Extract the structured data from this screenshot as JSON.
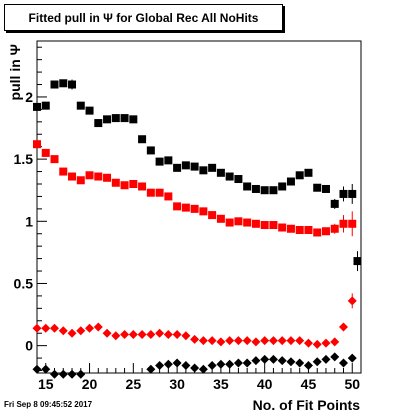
{
  "chart_data": {
    "type": "scatter",
    "title": "Fitted pull in Ψ for Global Rec All NoHits",
    "xlabel": "No. of Fit Points",
    "ylabel": "pull in Ψ",
    "xlim": [
      14,
      51
    ],
    "ylim": [
      -0.22,
      2.45
    ],
    "grid": false,
    "xticks": [
      15,
      20,
      25,
      30,
      35,
      40,
      45,
      50
    ],
    "yticks": [
      0,
      0.5,
      1,
      1.5,
      2
    ],
    "ytick_labels": [
      "0",
      "0.5",
      "1",
      "1.5",
      "2"
    ],
    "series": [
      {
        "color": "#000000",
        "marker": "square",
        "x": [
          14,
          15,
          16,
          17,
          18,
          19,
          20,
          21,
          22,
          23,
          24,
          25,
          26,
          27,
          28,
          29,
          30,
          31,
          32,
          33,
          34,
          35,
          36,
          37,
          38,
          39,
          40,
          41,
          42,
          43,
          44,
          45,
          46,
          47,
          48,
          49,
          50
        ],
        "y": [
          1.92,
          1.93,
          2.1,
          2.11,
          2.1,
          1.93,
          1.89,
          1.79,
          1.82,
          1.83,
          1.83,
          1.82,
          1.66,
          1.57,
          1.48,
          1.49,
          1.43,
          1.45,
          1.44,
          1.41,
          1.43,
          1.39,
          1.36,
          1.34,
          1.28,
          1.26,
          1.25,
          1.25,
          1.28,
          1.32,
          1.37,
          1.39,
          1.27,
          1.26,
          1.14,
          1.22,
          1.22
        ],
        "yerr": [
          0.05,
          0.03,
          0.03,
          0.03,
          0.04,
          0.03,
          0.03,
          0.03,
          0.03,
          0.02,
          0.02,
          0.02,
          0.02,
          0.02,
          0.02,
          0.02,
          0.02,
          0.02,
          0.02,
          0.02,
          0.02,
          0.02,
          0.02,
          0.02,
          0.02,
          0.02,
          0.02,
          0.02,
          0.02,
          0.02,
          0.02,
          0.03,
          0.03,
          0.03,
          0.04,
          0.06,
          0.08
        ]
      },
      {
        "color": "#000000",
        "marker": "square",
        "x": [
          50.6
        ],
        "y": [
          0.68
        ],
        "yerr": [
          0.08
        ]
      },
      {
        "color": "#ff0000",
        "marker": "square",
        "x": [
          14,
          15,
          16,
          17,
          18,
          19,
          20,
          21,
          22,
          23,
          24,
          25,
          26,
          27,
          28,
          29,
          30,
          31,
          32,
          33,
          34,
          35,
          36,
          37,
          38,
          39,
          40,
          41,
          42,
          43,
          44,
          45,
          46,
          47,
          48,
          49,
          50
        ],
        "y": [
          1.62,
          1.55,
          1.5,
          1.4,
          1.36,
          1.33,
          1.37,
          1.36,
          1.35,
          1.31,
          1.29,
          1.3,
          1.28,
          1.23,
          1.23,
          1.2,
          1.12,
          1.11,
          1.1,
          1.08,
          1.05,
          1.02,
          0.99,
          1.0,
          0.99,
          0.98,
          0.97,
          0.97,
          0.95,
          0.94,
          0.93,
          0.93,
          0.91,
          0.92,
          0.94,
          0.98,
          0.98
        ],
        "yerr": [
          0.03,
          0.02,
          0.02,
          0.02,
          0.02,
          0.02,
          0.02,
          0.02,
          0.02,
          0.02,
          0.02,
          0.02,
          0.02,
          0.02,
          0.02,
          0.02,
          0.02,
          0.02,
          0.02,
          0.02,
          0.02,
          0.02,
          0.02,
          0.02,
          0.02,
          0.02,
          0.02,
          0.02,
          0.02,
          0.02,
          0.02,
          0.02,
          0.02,
          0.03,
          0.04,
          0.07,
          0.1
        ]
      },
      {
        "color": "#ff0000",
        "marker": "diamond",
        "x": [
          14,
          15,
          16,
          17,
          18,
          19,
          20,
          21,
          22,
          23,
          24,
          25,
          26,
          27,
          28,
          29,
          30,
          31,
          32,
          33,
          34,
          35,
          36,
          37,
          38,
          39,
          40,
          41,
          42,
          43,
          44,
          45,
          46,
          47,
          48,
          49,
          50
        ],
        "y": [
          0.14,
          0.14,
          0.14,
          0.12,
          0.1,
          0.12,
          0.14,
          0.15,
          0.1,
          0.08,
          0.09,
          0.09,
          0.09,
          0.09,
          0.1,
          0.09,
          0.09,
          0.08,
          0.05,
          0.04,
          0.04,
          0.03,
          0.04,
          0.04,
          0.04,
          0.03,
          0.04,
          0.04,
          0.04,
          0.04,
          0.04,
          0.02,
          0.01,
          0.02,
          0.03,
          0.15,
          0.36
        ],
        "yerr": [
          0.01,
          0.01,
          0.01,
          0.01,
          0.01,
          0.01,
          0.01,
          0.01,
          0.01,
          0.01,
          0.01,
          0.01,
          0.01,
          0.01,
          0.01,
          0.01,
          0.01,
          0.01,
          0.01,
          0.01,
          0.01,
          0.01,
          0.01,
          0.01,
          0.01,
          0.01,
          0.01,
          0.01,
          0.01,
          0.01,
          0.01,
          0.01,
          0.01,
          0.02,
          0.02,
          0.03,
          0.06
        ]
      },
      {
        "color": "#000000",
        "marker": "diamond",
        "x": [
          14,
          15,
          16,
          17,
          18,
          19,
          27,
          28,
          29,
          30,
          31,
          32,
          33,
          34,
          35,
          36,
          37,
          38,
          39,
          40,
          41,
          42,
          43,
          44,
          45,
          46,
          47,
          48,
          49,
          50
        ],
        "y": [
          -0.19,
          -0.19,
          -0.23,
          -0.23,
          -0.23,
          -0.23,
          -0.19,
          -0.16,
          -0.15,
          -0.14,
          -0.16,
          -0.18,
          -0.19,
          -0.16,
          -0.15,
          -0.15,
          -0.14,
          -0.14,
          -0.12,
          -0.11,
          -0.11,
          -0.12,
          -0.13,
          -0.14,
          -0.16,
          -0.13,
          -0.11,
          -0.09,
          -0.14,
          -0.1
        ],
        "yerr": [
          0,
          0,
          0,
          0,
          0,
          0,
          0,
          0,
          0,
          0,
          0,
          0,
          0,
          0,
          0,
          0,
          0,
          0,
          0,
          0,
          0,
          0,
          0,
          0,
          0,
          0,
          0,
          0,
          0,
          0
        ]
      }
    ]
  },
  "footer": {
    "timestamp": "Fri Sep  8 09:45:52 2017"
  }
}
